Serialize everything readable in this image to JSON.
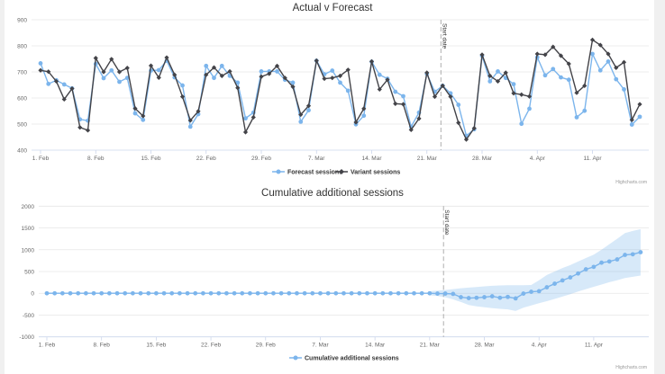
{
  "chart_data": [
    {
      "type": "line",
      "title": "Actual v Forecast",
      "credits": "Highcharts.com",
      "ylim": [
        400,
        900
      ],
      "yticks": [
        400,
        500,
        600,
        700,
        800,
        900
      ],
      "xtick_labels": [
        "1. Feb",
        "8. Feb",
        "15. Feb",
        "22. Feb",
        "29. Feb",
        "7. Mar",
        "14. Mar",
        "21. Mar",
        "28. Mar",
        "4. Apr",
        "11. Apr"
      ],
      "grid": true,
      "legend": "bottom-center",
      "plot_line": {
        "label": "Start date",
        "x": "23 Mar"
      },
      "x": [
        "1 Feb",
        "2 Feb",
        "3 Feb",
        "4 Feb",
        "5 Feb",
        "6 Feb",
        "7 Feb",
        "8 Feb",
        "9 Feb",
        "10 Feb",
        "11 Feb",
        "12 Feb",
        "13 Feb",
        "14 Feb",
        "15 Feb",
        "16 Feb",
        "17 Feb",
        "18 Feb",
        "19 Feb",
        "20 Feb",
        "21 Feb",
        "22 Feb",
        "23 Feb",
        "24 Feb",
        "25 Feb",
        "26 Feb",
        "27 Feb",
        "28 Feb",
        "29 Feb",
        "1 Mar",
        "2 Mar",
        "3 Mar",
        "4 Mar",
        "5 Mar",
        "6 Mar",
        "7 Mar",
        "8 Mar",
        "9 Mar",
        "10 Mar",
        "11 Mar",
        "12 Mar",
        "13 Mar",
        "14 Mar",
        "15 Mar",
        "16 Mar",
        "17 Mar",
        "18 Mar",
        "19 Mar",
        "20 Mar",
        "21 Mar",
        "22 Mar",
        "23 Mar",
        "24 Mar",
        "25 Mar",
        "26 Mar",
        "27 Mar",
        "28 Mar",
        "29 Mar",
        "30 Mar",
        "31 Mar",
        "1 Apr",
        "2 Apr",
        "3 Apr",
        "4 Apr",
        "5 Apr",
        "6 Apr",
        "7 Apr",
        "8 Apr",
        "9 Apr",
        "10 Apr",
        "11 Apr",
        "12 Apr",
        "13 Apr",
        "14 Apr",
        "15 Apr",
        "16 Apr",
        "17 Apr"
      ],
      "series": [
        {
          "name": "Forecast sessions",
          "color": "#7cb5ec",
          "marker": "circle",
          "values": [
            733,
            654,
            668,
            652,
            637,
            518,
            513,
            731,
            676,
            706,
            662,
            677,
            541,
            516,
            705,
            707,
            743,
            679,
            648,
            490,
            538,
            723,
            677,
            723,
            685,
            659,
            522,
            544,
            702,
            702,
            702,
            670,
            659,
            509,
            553,
            743,
            691,
            705,
            659,
            628,
            499,
            532,
            739,
            689,
            674,
            624,
            607,
            490,
            544,
            693,
            624,
            647,
            618,
            574,
            455,
            480,
            762,
            664,
            702,
            677,
            653,
            501,
            559,
            756,
            687,
            711,
            679,
            670,
            526,
            551,
            769,
            706,
            740,
            672,
            633,
            498,
            528
          ]
        },
        {
          "name": "Variant sessions",
          "color": "#434348",
          "marker": "diamond",
          "values": [
            706,
            701,
            664,
            595,
            636,
            487,
            476,
            753,
            700,
            749,
            700,
            715,
            560,
            531,
            724,
            678,
            755,
            689,
            605,
            514,
            549,
            689,
            717,
            685,
            702,
            639,
            469,
            526,
            682,
            693,
            723,
            677,
            643,
            536,
            570,
            743,
            674,
            677,
            685,
            708,
            507,
            559,
            740,
            633,
            670,
            578,
            576,
            478,
            521,
            697,
            605,
            647,
            605,
            505,
            441,
            484,
            766,
            685,
            664,
            697,
            618,
            613,
            606,
            769,
            766,
            796,
            762,
            731,
            620,
            647,
            823,
            803,
            769,
            716,
            737,
            516,
            576
          ]
        }
      ]
    },
    {
      "type": "line",
      "title": "Cumulative additional sessions",
      "credits": "Highcharts.com",
      "ylim": [
        -1000,
        2000
      ],
      "yticks": [
        -1000,
        -500,
        0,
        500,
        1000,
        1500,
        2000
      ],
      "xtick_labels": [
        "1. Feb",
        "8. Feb",
        "15. Feb",
        "22. Feb",
        "29. Feb",
        "7. Mar",
        "14. Mar",
        "21. Mar",
        "28. Mar",
        "4. Apr",
        "11. Apr"
      ],
      "grid": true,
      "legend": "bottom-center",
      "plot_line": {
        "label": "Start date",
        "x": "23 Mar"
      },
      "band_color": "#7cb5ec",
      "series": [
        {
          "name": "Cumulative additional sessions",
          "color": "#7cb5ec",
          "marker": "circle",
          "values": [
            0,
            0,
            0,
            0,
            0,
            0,
            0,
            0,
            0,
            0,
            0,
            0,
            0,
            0,
            0,
            0,
            0,
            0,
            0,
            0,
            0,
            0,
            0,
            0,
            0,
            0,
            0,
            0,
            0,
            0,
            0,
            0,
            0,
            0,
            0,
            0,
            0,
            0,
            0,
            0,
            0,
            0,
            0,
            0,
            0,
            0,
            0,
            0,
            0,
            0,
            -7,
            -7,
            -14,
            -89,
            -110,
            -103,
            -89,
            -69,
            -103,
            -83,
            -117,
            -7,
            34,
            48,
            138,
            220,
            296,
            365,
            454,
            551,
            606,
            702,
            730,
            778,
            881,
            895,
            943
          ],
          "lower": [
            null,
            null,
            null,
            null,
            null,
            null,
            null,
            null,
            null,
            null,
            null,
            null,
            null,
            null,
            null,
            null,
            null,
            null,
            null,
            null,
            null,
            null,
            null,
            null,
            null,
            null,
            null,
            null,
            null,
            null,
            null,
            null,
            null,
            null,
            null,
            null,
            null,
            null,
            null,
            null,
            null,
            null,
            null,
            null,
            null,
            null,
            null,
            null,
            null,
            -48,
            -62,
            -90,
            -140,
            -200,
            -268,
            -300,
            -320,
            -340,
            -355,
            -370,
            -406,
            -330,
            -280,
            -227,
            -180,
            -130,
            -76,
            -20,
            40,
            96,
            150,
            200,
            255,
            300,
            350,
            380,
            406
          ],
          "upper": [
            null,
            null,
            null,
            null,
            null,
            null,
            null,
            null,
            null,
            null,
            null,
            null,
            null,
            null,
            null,
            null,
            null,
            null,
            null,
            null,
            null,
            null,
            null,
            null,
            null,
            null,
            null,
            null,
            null,
            null,
            null,
            null,
            null,
            null,
            null,
            null,
            null,
            null,
            null,
            null,
            null,
            null,
            null,
            null,
            null,
            null,
            null,
            null,
            null,
            48,
            62,
            76,
            96,
            117,
            131,
            145,
            160,
            172,
            180,
            186,
            186,
            186,
            190,
            300,
            420,
            500,
            580,
            647,
            730,
            810,
            888,
            1000,
            1128,
            1250,
            1383,
            1430,
            1473
          ]
        }
      ]
    }
  ]
}
